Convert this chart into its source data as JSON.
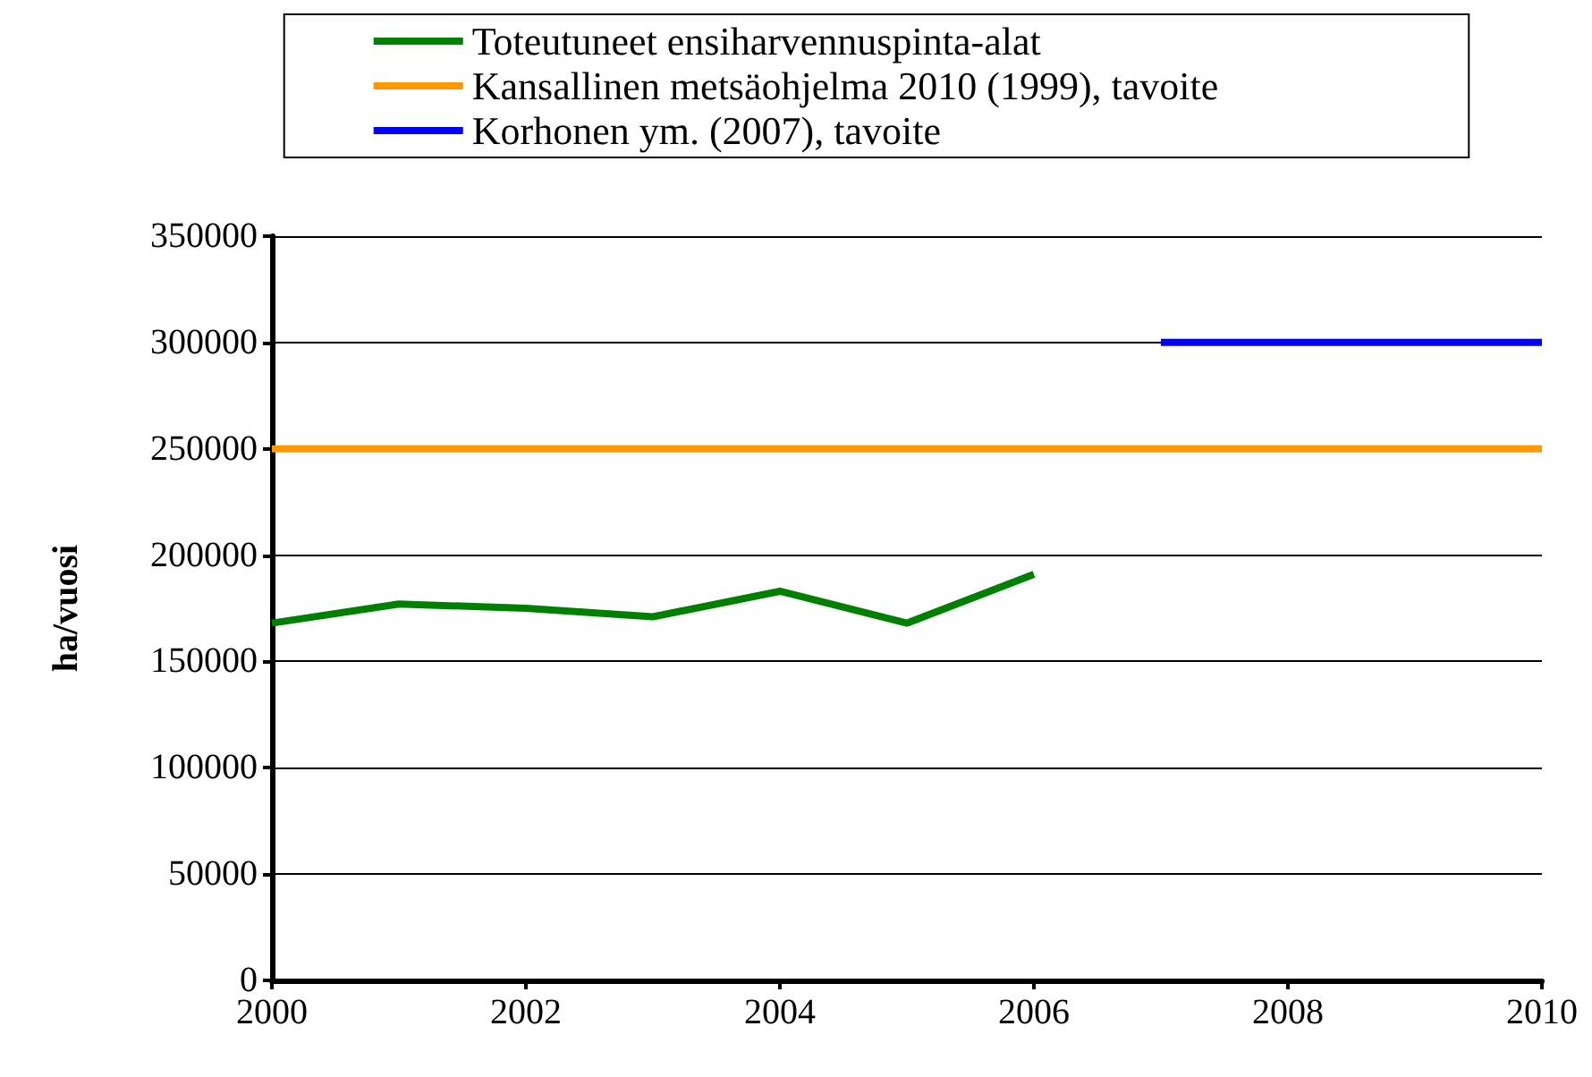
{
  "chart_data": {
    "type": "line",
    "ylabel": "ha/vuosi",
    "series": [
      {
        "name": "Toteutuneet ensiharvennuspinta-alat",
        "color": "#008000",
        "x": [
          2000,
          2001,
          2002,
          2003,
          2004,
          2005,
          2006
        ],
        "values": [
          168000,
          177000,
          175000,
          171000,
          183000,
          168000,
          191000
        ]
      },
      {
        "name": "Kansallinen metsäohjelma 2010 (1999), tavoite",
        "color": "#ff9900",
        "x": [
          2000,
          2010
        ],
        "values": [
          250000,
          250000
        ]
      },
      {
        "name": "Korhonen ym. (2007), tavoite",
        "color": "#0000ff",
        "x": [
          2007,
          2010
        ],
        "values": [
          300000,
          300000
        ]
      }
    ],
    "xlim": [
      2000,
      2010
    ],
    "xticks": [
      2000,
      2002,
      2004,
      2006,
      2008,
      2010
    ],
    "ylim": [
      0,
      350000
    ],
    "yticks": [
      0,
      50000,
      100000,
      150000,
      200000,
      250000,
      300000,
      350000
    ],
    "grid": "y",
    "legend": "top",
    "marker": "none",
    "line_style": "solid"
  }
}
